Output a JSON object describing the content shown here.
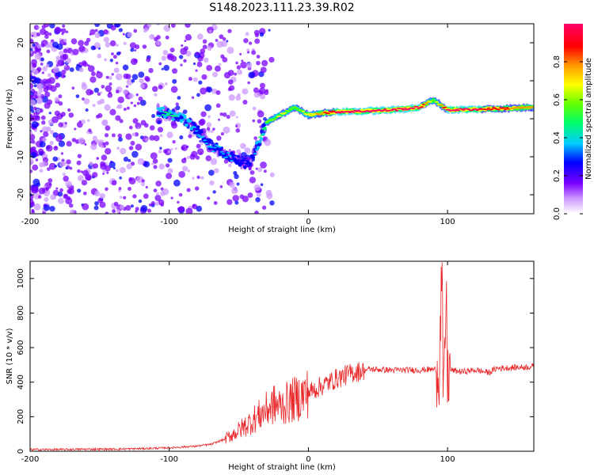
{
  "title": "S148.2023.111.23.39.R02",
  "chart_data": [
    {
      "type": "heatmap",
      "xlabel": "Height of straight line (km)",
      "ylabel": "Frequency (Hz)",
      "xlim": [
        -200,
        162
      ],
      "ylim": [
        -25,
        25
      ],
      "x_ticks": [
        "-200",
        "-100",
        "0",
        "100"
      ],
      "x_tick_values": [
        -200,
        -100,
        0,
        100
      ],
      "y_ticks": [
        "-20",
        "-10",
        "0",
        "10",
        "20"
      ],
      "y_tick_values": [
        -20,
        -10,
        0,
        10,
        20
      ],
      "colorbar": {
        "label": "Normalized spectral amplitude",
        "range": [
          0,
          1
        ],
        "ticks": [
          "0.0",
          "0.2",
          "0.4",
          "0.6",
          "0.8"
        ],
        "tick_values": [
          0.0,
          0.2,
          0.4,
          0.6,
          0.8
        ]
      },
      "grid": false,
      "ridge": [
        {
          "x": -108,
          "y": 2,
          "amp": 0.35
        },
        {
          "x": -100,
          "y": 1.5,
          "amp": 0.4
        },
        {
          "x": -90,
          "y": 0,
          "amp": 0.35
        },
        {
          "x": -80,
          "y": -3,
          "amp": 0.3
        },
        {
          "x": -70,
          "y": -7,
          "amp": 0.3
        },
        {
          "x": -60,
          "y": -9,
          "amp": 0.3
        },
        {
          "x": -50,
          "y": -11,
          "amp": 0.25
        },
        {
          "x": -42,
          "y": -12,
          "amp": 0.2
        },
        {
          "x": -30,
          "y": -1,
          "amp": 0.5
        },
        {
          "x": -20,
          "y": 1,
          "amp": 0.6
        },
        {
          "x": -10,
          "y": 3,
          "amp": 0.55
        },
        {
          "x": 0,
          "y": 1,
          "amp": 0.6
        },
        {
          "x": 10,
          "y": 1.5,
          "amp": 0.75
        },
        {
          "x": 20,
          "y": 1.8,
          "amp": 0.9
        },
        {
          "x": 40,
          "y": 2,
          "amp": 0.9
        },
        {
          "x": 60,
          "y": 2.3,
          "amp": 0.9
        },
        {
          "x": 80,
          "y": 3,
          "amp": 0.9
        },
        {
          "x": 90,
          "y": 5,
          "amp": 0.5
        },
        {
          "x": 100,
          "y": 2.3,
          "amp": 0.9
        },
        {
          "x": 120,
          "y": 2.5,
          "amp": 0.9
        },
        {
          "x": 140,
          "y": 2.7,
          "amp": 0.8
        },
        {
          "x": 162,
          "y": 3,
          "amp": 0.7
        }
      ]
    },
    {
      "type": "line",
      "xlabel": "Height of straight line (km)",
      "ylabel": "SNR (10 * v/v)",
      "xlim": [
        -200,
        162
      ],
      "ylim": [
        0,
        1100
      ],
      "x_ticks": [
        "-200",
        "-100",
        "0",
        "100"
      ],
      "x_tick_values": [
        -200,
        -100,
        0,
        100
      ],
      "y_ticks": [
        "0",
        "200",
        "400",
        "600",
        "800",
        "1000"
      ],
      "y_tick_values": [
        0,
        200,
        400,
        600,
        800,
        1000
      ],
      "grid": false,
      "series": [
        {
          "color": "#e8282a",
          "x": [
            -200,
            -180,
            -160,
            -140,
            -120,
            -100,
            -90,
            -80,
            -70,
            -60,
            -50,
            -40,
            -30,
            -25,
            -20,
            -10,
            0,
            10,
            20,
            30,
            40,
            45,
            60,
            80,
            90,
            94,
            96,
            97,
            99,
            100,
            102,
            110,
            120,
            130,
            135,
            150,
            162
          ],
          "y": [
            10,
            10,
            12,
            12,
            15,
            20,
            25,
            30,
            40,
            70,
            120,
            180,
            240,
            270,
            260,
            300,
            340,
            380,
            420,
            450,
            470,
            475,
            470,
            470,
            475,
            470,
            1100,
            200,
            900,
            420,
            470,
            460,
            470,
            455,
            480,
            485,
            490
          ]
        }
      ]
    }
  ]
}
